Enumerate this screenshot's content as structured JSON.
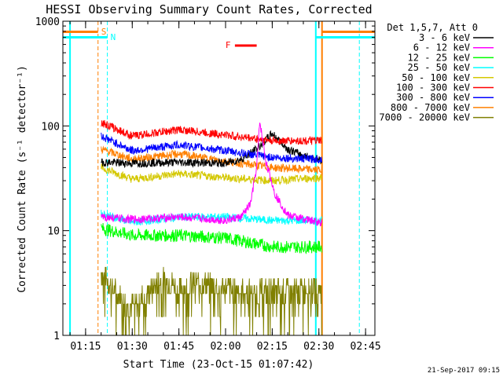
{
  "chart_data": {
    "type": "line",
    "title": "HESSI Observing Summary Count Rates, Corrected",
    "xlabel": "Start Time (23-Oct-15 01:07:42)",
    "ylabel": "Corrected Count Rate (s⁻¹ detector⁻¹)",
    "xaxis_unit": "time (HH:MM)",
    "xlim": [
      "01:07:42",
      "02:48:00"
    ],
    "x_ticks": [
      "01:15",
      "01:30",
      "01:45",
      "02:00",
      "02:15",
      "02:30",
      "02:45"
    ],
    "y_scale": "log",
    "ylim": [
      1,
      1000
    ],
    "y_ticks": [
      "1",
      "10",
      "100",
      "1000"
    ],
    "grid": false,
    "legend_position": "right",
    "legend_header": "Det 1,5,7, Att 0",
    "series": [
      {
        "name": "3 - 6 keV",
        "color": "#000000",
        "x": [
          "01:20",
          "01:30",
          "01:45",
          "02:00",
          "02:05",
          "02:10",
          "02:15",
          "02:20",
          "02:25",
          "02:30"
        ],
        "y": [
          45,
          44,
          45,
          44,
          48,
          60,
          85,
          60,
          52,
          48
        ]
      },
      {
        "name": "6 - 12 keV",
        "color": "#ff00ff",
        "x": [
          "01:20",
          "01:30",
          "01:45",
          "02:00",
          "02:05",
          "02:08",
          "02:10",
          "02:11",
          "02:13",
          "02:16",
          "02:20",
          "02:25",
          "02:30"
        ],
        "y": [
          13.5,
          12.8,
          13.5,
          12.5,
          13.5,
          18,
          40,
          110,
          45,
          22,
          14,
          13,
          12
        ]
      },
      {
        "name": "12 - 25 keV",
        "color": "#00ff00",
        "x": [
          "01:20",
          "01:30",
          "01:45",
          "02:00",
          "02:15",
          "02:30"
        ],
        "y": [
          10.5,
          9,
          9,
          8.5,
          7,
          7
        ]
      },
      {
        "name": "25 - 50 keV",
        "color": "#00ffff",
        "x": [
          "01:20",
          "01:30",
          "01:45",
          "02:00",
          "02:15",
          "02:30"
        ],
        "y": [
          14.5,
          12,
          13.5,
          13.5,
          12.5,
          12.5
        ]
      },
      {
        "name": "50 - 100 keV",
        "color": "#d4c800",
        "x": [
          "01:20",
          "01:30",
          "01:45",
          "02:00",
          "02:15",
          "02:30"
        ],
        "y": [
          40,
          31,
          35,
          32,
          30,
          32
        ]
      },
      {
        "name": "100 - 300 keV",
        "color": "#ff0000",
        "x": [
          "01:20",
          "01:30",
          "01:45",
          "02:00",
          "02:15",
          "02:30"
        ],
        "y": [
          108,
          80,
          92,
          82,
          72,
          72
        ]
      },
      {
        "name": "300 - 800 keV",
        "color": "#0000ff",
        "x": [
          "01:20",
          "01:30",
          "01:45",
          "02:00",
          "02:15",
          "02:30"
        ],
        "y": [
          80,
          58,
          66,
          58,
          50,
          48
        ]
      },
      {
        "name": "800 - 7000 keV",
        "color": "#ff8000",
        "x": [
          "01:20",
          "01:30",
          "01:45",
          "02:00",
          "02:15",
          "02:30"
        ],
        "y": [
          60,
          48,
          54,
          46,
          40,
          38
        ]
      },
      {
        "name": "7000 - 20000 keV",
        "color": "#808000",
        "x": [
          "01:20",
          "01:25",
          "01:30",
          "01:35",
          "01:40",
          "01:45",
          "01:50",
          "01:55",
          "02:00",
          "02:10",
          "02:20",
          "02:30"
        ],
        "y": [
          4,
          2.5,
          1.8,
          2.5,
          3.5,
          2.8,
          3.2,
          3,
          2.8,
          2.6,
          2.6,
          2.8
        ]
      }
    ],
    "flags": [
      {
        "label": "S",
        "color": "#ff8000"
      },
      {
        "label": "N",
        "color": "#00ffff"
      },
      {
        "label": "F",
        "color": "#ff0000",
        "start": "02:03",
        "end": "02:10"
      }
    ],
    "orange_bars": [
      {
        "start": "01:07:42",
        "end": "01:19"
      },
      {
        "start": "02:31",
        "end": "02:48"
      }
    ],
    "cyan_bars": [
      {
        "start": "01:07:42",
        "end": "01:22"
      },
      {
        "start": "02:29",
        "end": "02:48"
      }
    ],
    "vlines": [
      {
        "x": "01:10",
        "color": "#00ffff",
        "style": "solid"
      },
      {
        "x": "01:19",
        "color": "#ff8000",
        "style": "dashed"
      },
      {
        "x": "01:22",
        "color": "#00ffff",
        "style": "dashed"
      },
      {
        "x": "02:29",
        "color": "#00ffff",
        "style": "solid"
      },
      {
        "x": "02:31",
        "color": "#ff8000",
        "style": "solid"
      },
      {
        "x": "02:43",
        "color": "#00ffff",
        "style": "dashed"
      }
    ]
  },
  "footer_timestamp": "21-Sep-2017 09:15"
}
